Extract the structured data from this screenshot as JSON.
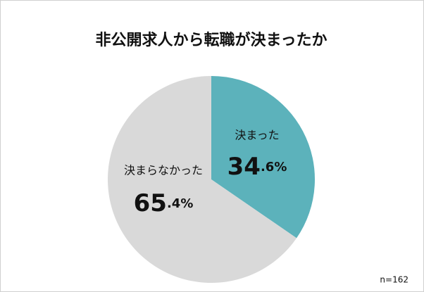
{
  "chart_data": {
    "type": "pie",
    "title": "非公開求人から転職が決まったか",
    "categories": [
      "決まった",
      "決まらなかった"
    ],
    "values": [
      34.6,
      65.4
    ],
    "value_labels": [
      "34.6%",
      "65.4%"
    ],
    "colors": [
      "#5cb2bb",
      "#d9d9d9"
    ],
    "note": "n=162"
  }
}
